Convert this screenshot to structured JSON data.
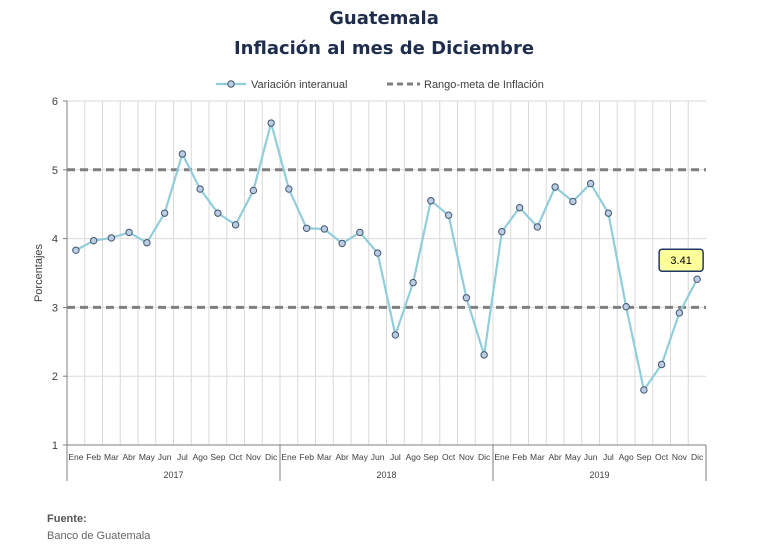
{
  "chart_data": {
    "type": "line",
    "title": "Guatemala",
    "subtitle": "Inflación al mes de Diciembre",
    "ylabel": "Porcentajes",
    "xlabel": "",
    "ylim": [
      1,
      6
    ],
    "yticks": [
      "1",
      "2",
      "3",
      "4",
      "5",
      "6"
    ],
    "grid": true,
    "legend_position": "top",
    "months": [
      "Ene",
      "Feb",
      "Mar",
      "Abr",
      "May",
      "Jun",
      "Jul",
      "Ago",
      "Sep",
      "Oct",
      "Nov",
      "Dic"
    ],
    "years": [
      "2017",
      "2018",
      "2019"
    ],
    "series": [
      {
        "name": "Variación interanual",
        "color": "#92cddc",
        "marker_fill": "#b9cde5",
        "marker_stroke": "#44546a",
        "values": [
          3.83,
          3.97,
          4.01,
          4.09,
          3.94,
          4.37,
          5.23,
          4.72,
          4.37,
          4.2,
          4.7,
          5.68,
          4.72,
          4.15,
          4.14,
          3.93,
          4.09,
          3.79,
          2.6,
          3.36,
          4.55,
          4.34,
          3.14,
          2.31,
          4.1,
          4.45,
          4.17,
          4.75,
          4.54,
          4.8,
          4.37,
          3.01,
          1.8,
          2.17,
          2.92,
          3.41
        ]
      },
      {
        "name": "Rango-meta de Inflación",
        "color": "#7f7f7f",
        "style": "dashed",
        "values": [
          5,
          3
        ]
      }
    ],
    "annotation": {
      "text": "3.41",
      "point": "Dic 2019"
    }
  },
  "source": {
    "label": "Fuente:",
    "text": "Banco de Guatemala"
  }
}
